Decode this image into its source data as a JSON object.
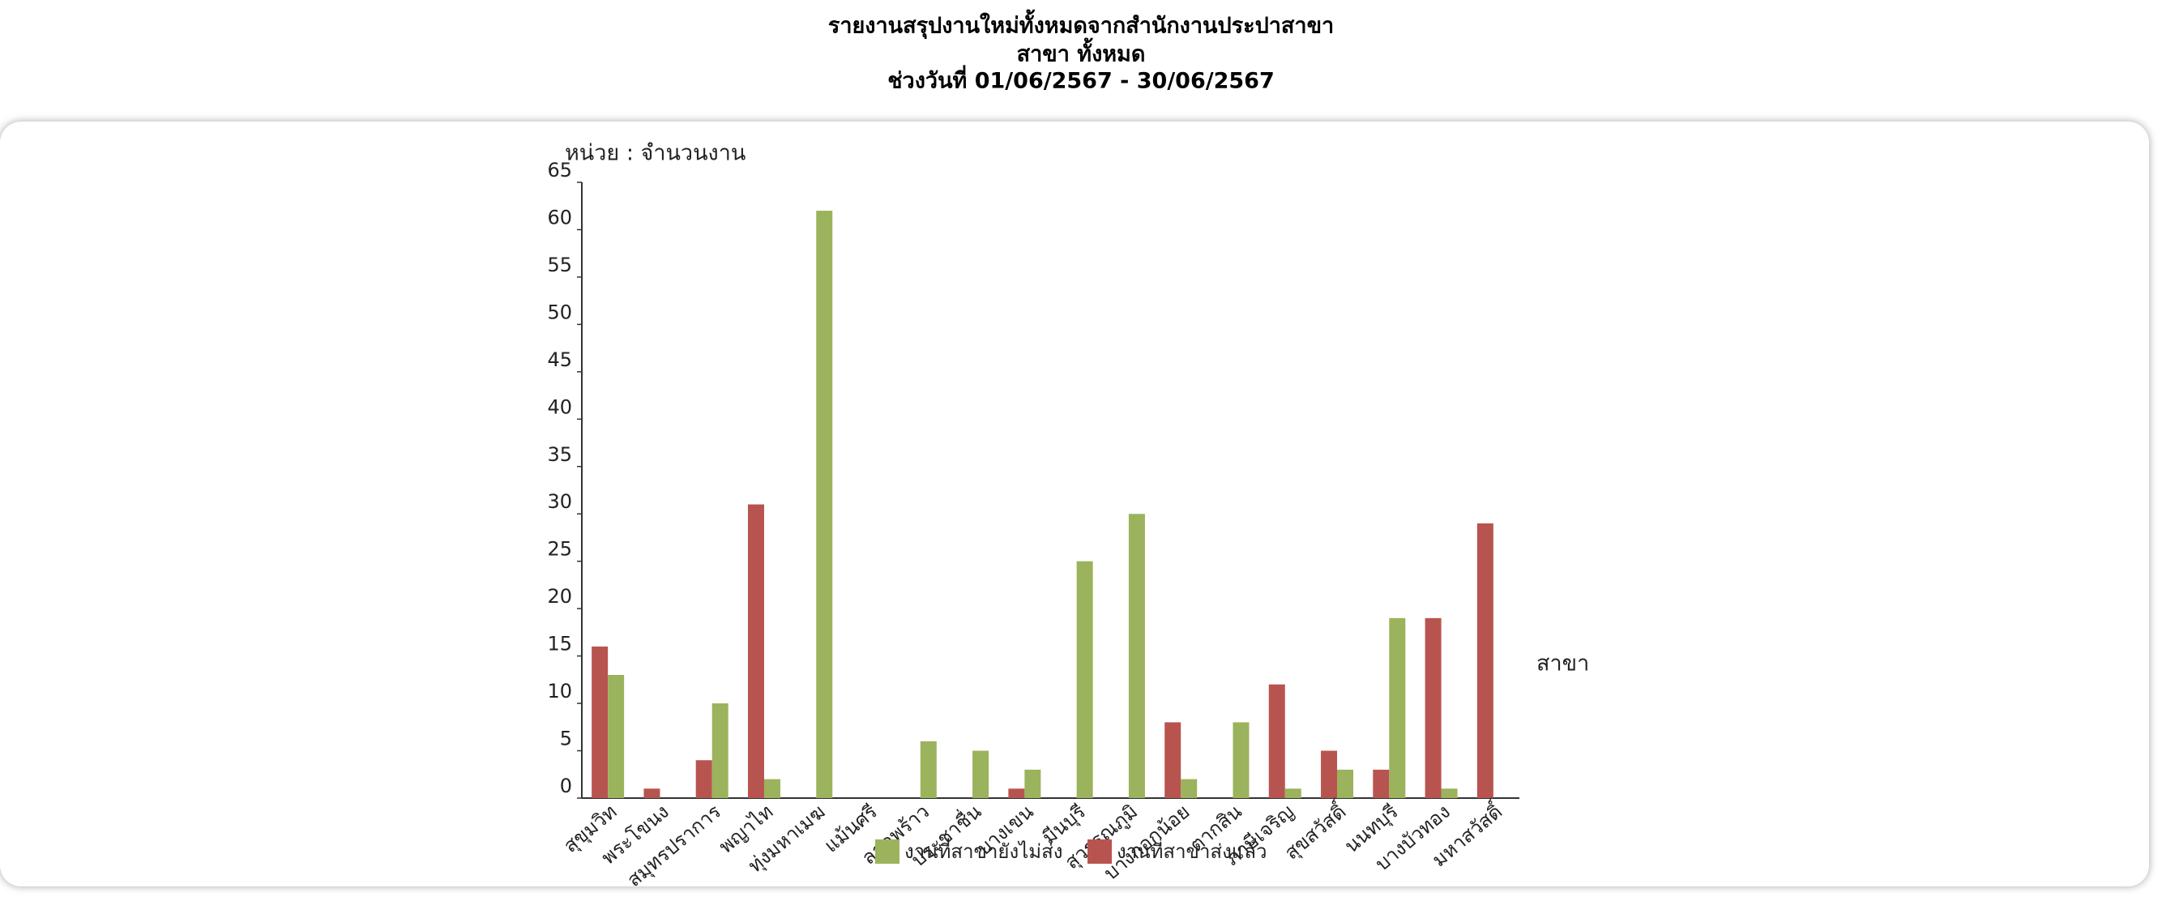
{
  "chart_data": {
    "type": "bar",
    "title": "รายงานสรุปงานใหม่ทั้งหมดจากสำนักงานประปาสาขา",
    "subtitle": "สาขา ทั้งหมด",
    "date_range": "ช่วงวันที่ 01/06/2567 - 30/06/2567",
    "y_label": "หน่วย : จำนวนงาน",
    "x_label": "สาขา",
    "categories": [
      "สุขุมวิท",
      "พระโขนง",
      "สมุทรปราการ",
      "พญาไท",
      "ทุ่งมหาเมฆ",
      "แม้นศรี",
      "ลาดพร้าว",
      "ประชาชื่น",
      "บางเขน",
      "มีนบุรี",
      "สุวรรณภูมิ",
      "บางกอกน้อย",
      "ตากสิน",
      "ภาษีเจริญ",
      "สุขสวัสดิ์",
      "นนทบุรี",
      "บางบัวทอง",
      "มหาสวัสดิ์"
    ],
    "series": [
      {
        "name": "งานที่สาขาส่งแล้ว",
        "color": "#b85450",
        "values": [
          16,
          1,
          4,
          31,
          0,
          0,
          0,
          0,
          1,
          0,
          0,
          8,
          0,
          12,
          5,
          3,
          19,
          29
        ]
      },
      {
        "name": "งานที่สาขายังไม่ส่ง",
        "color": "#9bb35c",
        "values": [
          13,
          0,
          10,
          2,
          62,
          0,
          6,
          5,
          3,
          25,
          30,
          2,
          8,
          1,
          3,
          19,
          1,
          0
        ]
      }
    ],
    "legend_order": [
      1,
      0
    ],
    "ylim": [
      0,
      65
    ],
    "yticks": [
      0,
      5,
      10,
      15,
      20,
      25,
      30,
      35,
      40,
      45,
      50,
      55,
      60,
      65
    ],
    "grid": false
  }
}
